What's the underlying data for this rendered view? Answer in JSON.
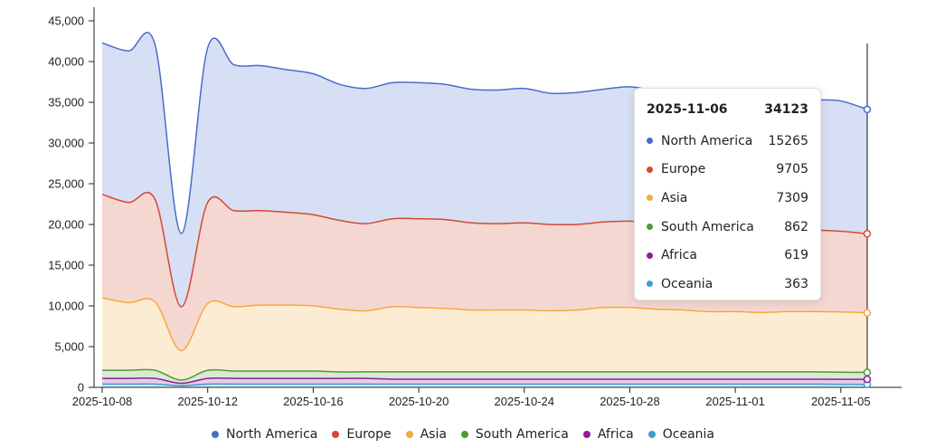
{
  "chart_data": {
    "type": "area",
    "stacked": true,
    "legend_position": "bottom",
    "grid": false,
    "ylim": [
      0,
      45000
    ],
    "yticks": [
      "0",
      "5,000",
      "10,000",
      "15,000",
      "20,000",
      "25,000",
      "30,000",
      "35,000",
      "40,000",
      "45,000"
    ],
    "xticks": [
      "2025-10-08",
      "2025-10-12",
      "2025-10-16",
      "2025-10-20",
      "2025-10-24",
      "2025-10-28",
      "2025-11-01",
      "2025-11-05"
    ],
    "x": [
      "2025-10-08",
      "2025-10-09",
      "2025-10-10",
      "2025-10-11",
      "2025-10-12",
      "2025-10-13",
      "2025-10-14",
      "2025-10-15",
      "2025-10-16",
      "2025-10-17",
      "2025-10-18",
      "2025-10-19",
      "2025-10-20",
      "2025-10-21",
      "2025-10-22",
      "2025-10-23",
      "2025-10-24",
      "2025-10-25",
      "2025-10-26",
      "2025-10-27",
      "2025-10-28",
      "2025-10-29",
      "2025-10-30",
      "2025-10-31",
      "2025-11-01",
      "2025-11-02",
      "2025-11-03",
      "2025-11-04",
      "2025-11-05",
      "2025-11-06"
    ],
    "series": [
      {
        "name": "Oceania",
        "color": "#3d9dce",
        "values": [
          400,
          400,
          400,
          200,
          400,
          400,
          400,
          400,
          400,
          400,
          400,
          400,
          400,
          400,
          400,
          400,
          400,
          400,
          400,
          400,
          400,
          400,
          400,
          400,
          400,
          400,
          400,
          400,
          380,
          363
        ]
      },
      {
        "name": "Africa",
        "color": "#8e1f96",
        "values": [
          700,
          700,
          700,
          300,
          700,
          700,
          700,
          700,
          700,
          700,
          700,
          600,
          600,
          600,
          600,
          600,
          600,
          600,
          600,
          600,
          600,
          600,
          600,
          600,
          600,
          600,
          600,
          600,
          610,
          619
        ]
      },
      {
        "name": "South America",
        "color": "#4e9a3c",
        "values": [
          1000,
          1000,
          1000,
          400,
          1000,
          900,
          900,
          900,
          900,
          800,
          800,
          900,
          900,
          900,
          900,
          900,
          900,
          900,
          900,
          900,
          900,
          900,
          900,
          900,
          900,
          900,
          900,
          900,
          870,
          862
        ]
      },
      {
        "name": "Asia",
        "color": "#f5a93b",
        "values": [
          8900,
          8300,
          8400,
          3600,
          8200,
          7900,
          8100,
          8100,
          8000,
          7700,
          7500,
          8000,
          7900,
          7800,
          7600,
          7600,
          7600,
          7500,
          7600,
          7900,
          7900,
          7700,
          7600,
          7400,
          7400,
          7300,
          7400,
          7400,
          7400,
          7309
        ]
      },
      {
        "name": "Europe",
        "color": "#d24a32",
        "values": [
          12700,
          12300,
          12600,
          5400,
          12400,
          11800,
          11600,
          11400,
          11200,
          10900,
          10700,
          10800,
          10900,
          10900,
          10700,
          10600,
          10700,
          10600,
          10500,
          10500,
          10600,
          10500,
          10400,
          10500,
          10200,
          10100,
          10000,
          10000,
          9900,
          9705
        ]
      },
      {
        "name": "North America",
        "color": "#4a6ccb",
        "values": [
          18600,
          18600,
          19000,
          9000,
          19000,
          17900,
          17800,
          17500,
          17300,
          16700,
          16600,
          16700,
          16700,
          16600,
          16400,
          16400,
          16500,
          16100,
          16200,
          16300,
          16500,
          16300,
          16200,
          16100,
          16100,
          16300,
          16100,
          16000,
          16000,
          15265
        ]
      }
    ],
    "tooltip": {
      "date": "2025-11-06",
      "total": "34123",
      "rows": [
        {
          "name": "North America",
          "value": "15265",
          "color": "#4a6ccb"
        },
        {
          "name": "Europe",
          "value": "9705",
          "color": "#d24a32"
        },
        {
          "name": "Asia",
          "value": "7309",
          "color": "#f5a93b"
        },
        {
          "name": "South America",
          "value": "862",
          "color": "#4e9a3c"
        },
        {
          "name": "Africa",
          "value": "619",
          "color": "#8e1f96"
        },
        {
          "name": "Oceania",
          "value": "363",
          "color": "#3d9dce"
        }
      ]
    },
    "legend": [
      {
        "name": "North America",
        "color": "#4a6ccb"
      },
      {
        "name": "Europe",
        "color": "#d24a32"
      },
      {
        "name": "Asia",
        "color": "#f5a93b"
      },
      {
        "name": "South America",
        "color": "#4e9a3c"
      },
      {
        "name": "Africa",
        "color": "#8e1f96"
      },
      {
        "name": "Oceania",
        "color": "#3d9dce"
      }
    ]
  }
}
